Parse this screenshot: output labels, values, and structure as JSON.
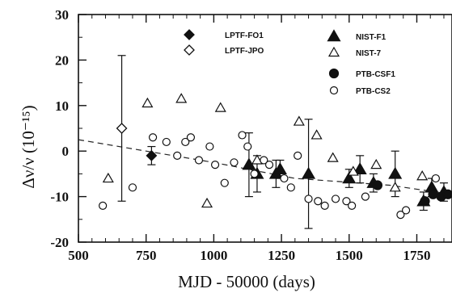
{
  "chart_data": {
    "type": "scatter",
    "xlabel": "MJD - 50000 (days)",
    "ylabel": "Δν/ν  (10⁻¹⁵)",
    "xlim": [
      500,
      1880
    ],
    "ylim": [
      -20,
      30
    ],
    "x_ticks": [
      "500",
      "750",
      "1000",
      "1250",
      "1500",
      "1750"
    ],
    "x_tick_values": [
      500,
      750,
      1000,
      1250,
      1500,
      1750
    ],
    "y_ticks": [
      "30",
      "20",
      "10",
      "0",
      "-10",
      "-20"
    ],
    "y_tick_values": [
      30,
      20,
      10,
      0,
      -10,
      -20
    ],
    "series": [
      {
        "name": "LPTF-FO1",
        "marker": "filled-diamond",
        "points": [
          {
            "x": 770,
            "y": -1,
            "err": 2
          }
        ]
      },
      {
        "name": "LPTF-JPO",
        "marker": "open-diamond",
        "points": [
          {
            "x": 660,
            "y": 5,
            "err": 16
          }
        ]
      },
      {
        "name": "NIST-F1",
        "marker": "filled-triangle",
        "points": [
          {
            "x": 1130,
            "y": -3,
            "err": 7
          },
          {
            "x": 1160,
            "y": -5,
            "err": 4
          },
          {
            "x": 1230,
            "y": -5,
            "err": 3
          },
          {
            "x": 1245,
            "y": -4,
            "err": 2
          },
          {
            "x": 1350,
            "y": -5,
            "err": 12
          },
          {
            "x": 1500,
            "y": -6,
            "err": 2
          },
          {
            "x": 1540,
            "y": -4,
            "err": 3
          },
          {
            "x": 1590,
            "y": -7,
            "err": 2
          },
          {
            "x": 1670,
            "y": -5,
            "err": 5
          },
          {
            "x": 1775,
            "y": -11,
            "err": 2
          },
          {
            "x": 1805,
            "y": -8,
            "err": 2
          },
          {
            "x": 1850,
            "y": -9,
            "err": 2
          }
        ]
      },
      {
        "name": "NIST-7",
        "marker": "open-triangle",
        "points": [
          {
            "x": 610,
            "y": -6
          },
          {
            "x": 755,
            "y": 10.5
          },
          {
            "x": 880,
            "y": 11.5
          },
          {
            "x": 975,
            "y": -11.5
          },
          {
            "x": 1025,
            "y": 9.5
          },
          {
            "x": 1160,
            "y": -2
          },
          {
            "x": 1315,
            "y": 6.5
          },
          {
            "x": 1380,
            "y": 3.5
          },
          {
            "x": 1440,
            "y": -1.5
          },
          {
            "x": 1515,
            "y": -4.5
          },
          {
            "x": 1600,
            "y": -3
          },
          {
            "x": 1670,
            "y": -8
          },
          {
            "x": 1770,
            "y": -5.5
          }
        ]
      },
      {
        "name": "PTB-CSF1",
        "marker": "filled-circle",
        "points": [
          {
            "x": 1605,
            "y": -7.5
          },
          {
            "x": 1780,
            "y": -11
          },
          {
            "x": 1810,
            "y": -9.5
          },
          {
            "x": 1840,
            "y": -10
          },
          {
            "x": 1865,
            "y": -9.5
          }
        ]
      },
      {
        "name": "PTB-CS2",
        "marker": "open-circle",
        "points": [
          {
            "x": 590,
            "y": -12
          },
          {
            "x": 700,
            "y": -8
          },
          {
            "x": 775,
            "y": 3
          },
          {
            "x": 825,
            "y": 2
          },
          {
            "x": 865,
            "y": -1
          },
          {
            "x": 895,
            "y": 2
          },
          {
            "x": 915,
            "y": 3
          },
          {
            "x": 945,
            "y": -2
          },
          {
            "x": 985,
            "y": 1
          },
          {
            "x": 1005,
            "y": -3
          },
          {
            "x": 1040,
            "y": -7
          },
          {
            "x": 1075,
            "y": -2.5
          },
          {
            "x": 1105,
            "y": 3.5
          },
          {
            "x": 1125,
            "y": 1
          },
          {
            "x": 1150,
            "y": -5
          },
          {
            "x": 1185,
            "y": -2
          },
          {
            "x": 1205,
            "y": -3
          },
          {
            "x": 1260,
            "y": -6
          },
          {
            "x": 1285,
            "y": -8
          },
          {
            "x": 1310,
            "y": -1
          },
          {
            "x": 1350,
            "y": -10.5
          },
          {
            "x": 1385,
            "y": -11
          },
          {
            "x": 1410,
            "y": -12
          },
          {
            "x": 1450,
            "y": -10.5
          },
          {
            "x": 1490,
            "y": -11
          },
          {
            "x": 1510,
            "y": -12
          },
          {
            "x": 1560,
            "y": -10
          },
          {
            "x": 1690,
            "y": -14
          },
          {
            "x": 1710,
            "y": -13
          },
          {
            "x": 1820,
            "y": -6
          }
        ]
      }
    ],
    "trend_line": [
      {
        "x": 500,
        "y": 2.5
      },
      {
        "x": 1000,
        "y": -2.5
      },
      {
        "x": 1300,
        "y": -6
      },
      {
        "x": 1650,
        "y": -7.5
      },
      {
        "x": 1880,
        "y": -9.5
      }
    ],
    "legend": {
      "placement": "top",
      "entries": [
        {
          "label": "LPTF-FO1",
          "marker": "filled-diamond"
        },
        {
          "label": "LPTF-JPO",
          "marker": "open-diamond"
        },
        {
          "label": "NIST-F1",
          "marker": "filled-triangle"
        },
        {
          "label": "NIST-7",
          "marker": "open-triangle"
        },
        {
          "label": "PTB-CSF1",
          "marker": "filled-circle"
        },
        {
          "label": "PTB-CS2",
          "marker": "open-circle"
        }
      ]
    }
  }
}
